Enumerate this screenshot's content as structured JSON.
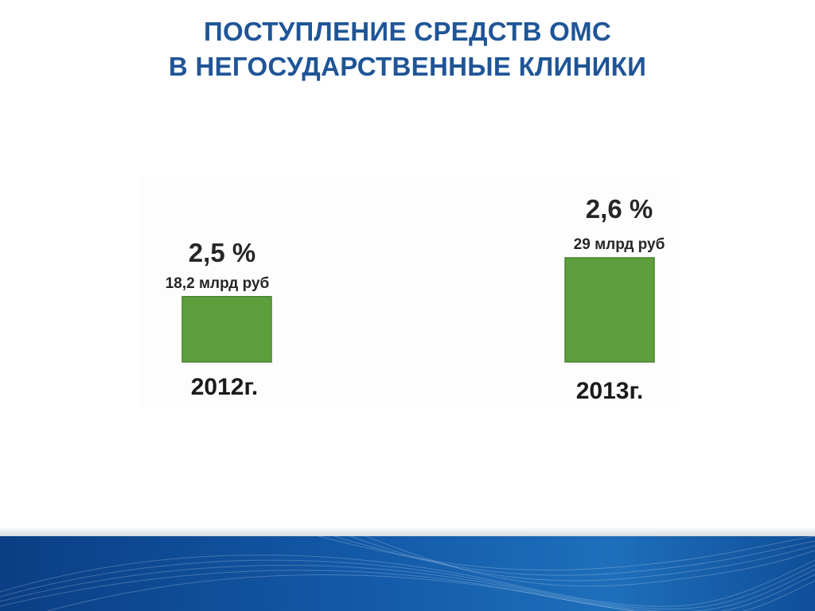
{
  "slide": {
    "title_line1": "ПОСТУПЛЕНИЕ СРЕДСТВ ОМС",
    "title_line2": "В НЕГОСУДАРСТВЕННЫЕ КЛИНИКИ"
  },
  "colors": {
    "title": "#1f5597",
    "bar": "#5e9f3d",
    "bar_edge": "#4a8430",
    "footer": "#135aa8"
  },
  "chart_data": {
    "type": "bar",
    "categories": [
      "2012г.",
      "2013г."
    ],
    "values": [
      18.2,
      29
    ],
    "value_labels": [
      "18,2 млрд руб",
      "29 млрд руб"
    ],
    "percent_labels": [
      "2,5 %",
      "2,6 %"
    ],
    "title": "",
    "xlabel": "",
    "ylabel": "",
    "ylim": [
      0,
      34
    ],
    "grid": false,
    "legend": "none"
  }
}
